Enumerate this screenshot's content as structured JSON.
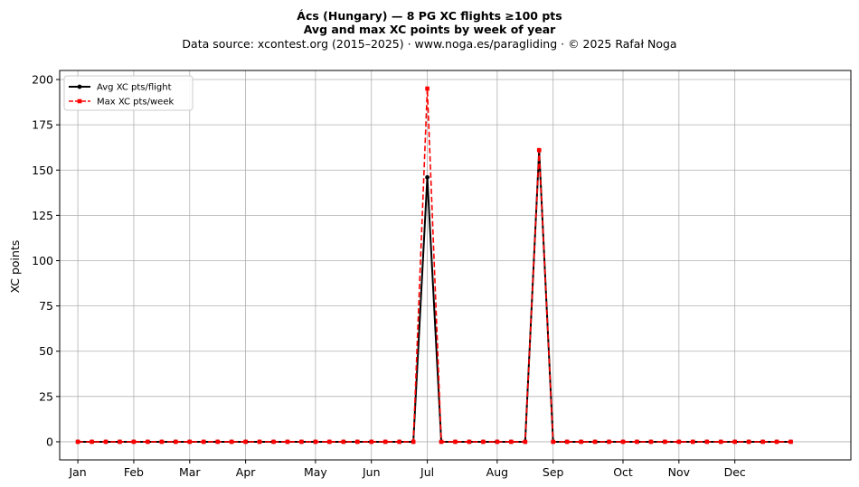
{
  "chart_data": {
    "type": "line",
    "title": "Ács (Hungary)  —  8 PG XC flights ≥100 pts",
    "subtitle": "Avg and max XC points by week of year",
    "source": "Data source: xcontest.org (2015–2025)  ·  www.noga.es/paragliding  ·  © 2025 Rafał Noga",
    "xlabel": "",
    "ylabel": "XC points",
    "ylim": [
      -10,
      205
    ],
    "xlim": [
      -1.3,
      55.3
    ],
    "grid": true,
    "legend_position": "top-left",
    "y_ticks": [
      0,
      25,
      50,
      75,
      100,
      125,
      150,
      175,
      200
    ],
    "x_ticks": [
      {
        "label": "Jan",
        "week": 0
      },
      {
        "label": "Feb",
        "week": 4
      },
      {
        "label": "Mar",
        "week": 8
      },
      {
        "label": "Apr",
        "week": 12
      },
      {
        "label": "May",
        "week": 17
      },
      {
        "label": "Jun",
        "week": 21
      },
      {
        "label": "Jul",
        "week": 25
      },
      {
        "label": "Aug",
        "week": 30
      },
      {
        "label": "Sep",
        "week": 34
      },
      {
        "label": "Oct",
        "week": 39
      },
      {
        "label": "Nov",
        "week": 43
      },
      {
        "label": "Dec",
        "week": 47
      }
    ],
    "x": [
      0,
      1,
      2,
      3,
      4,
      5,
      6,
      7,
      8,
      9,
      10,
      11,
      12,
      13,
      14,
      15,
      16,
      17,
      18,
      19,
      20,
      21,
      22,
      23,
      24,
      25,
      26,
      27,
      28,
      29,
      30,
      31,
      32,
      33,
      34,
      35,
      36,
      37,
      38,
      39,
      40,
      41,
      42,
      43,
      44,
      45,
      46,
      47,
      48,
      49,
      50,
      51
    ],
    "series": [
      {
        "name": "Avg XC pts/flight",
        "color": "#000000",
        "style": "solid-circle",
        "values": [
          0,
          0,
          0,
          0,
          0,
          0,
          0,
          0,
          0,
          0,
          0,
          0,
          0,
          0,
          0,
          0,
          0,
          0,
          0,
          0,
          0,
          0,
          0,
          0,
          0,
          146,
          0,
          0,
          0,
          0,
          0,
          0,
          0,
          161,
          0,
          0,
          0,
          0,
          0,
          0,
          0,
          0,
          0,
          0,
          0,
          0,
          0,
          0,
          0,
          0,
          0,
          0
        ]
      },
      {
        "name": "Max XC pts/week",
        "color": "#ff0000",
        "style": "dashed-square",
        "values": [
          0,
          0,
          0,
          0,
          0,
          0,
          0,
          0,
          0,
          0,
          0,
          0,
          0,
          0,
          0,
          0,
          0,
          0,
          0,
          0,
          0,
          0,
          0,
          0,
          0,
          195,
          0,
          0,
          0,
          0,
          0,
          0,
          0,
          161,
          0,
          0,
          0,
          0,
          0,
          0,
          0,
          0,
          0,
          0,
          0,
          0,
          0,
          0,
          0,
          0,
          0,
          0
        ]
      }
    ]
  }
}
